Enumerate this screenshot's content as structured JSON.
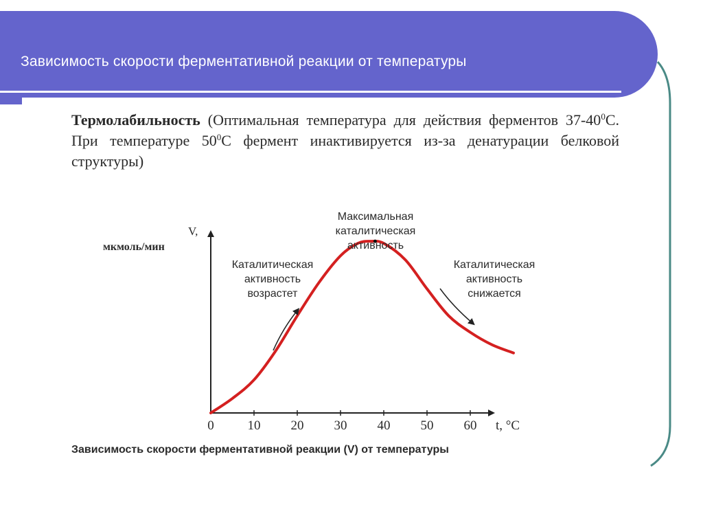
{
  "header": {
    "title": "Зависимость скорости  ферментативной реакции от температуры",
    "color": "#6464cc"
  },
  "description": {
    "bold_term": "Термолабильность",
    "text_1": " (Оптимальная температура для действия ферментов 37-40",
    "sup_1": "0",
    "text_2": "С. При температуре 50",
    "sup_2": "0",
    "text_3": "С фермент инактивируется из-за денатурации белковой структуры)"
  },
  "chart_data": {
    "type": "line",
    "ylabel_line1": "V,",
    "ylabel_line2": "мкмоль/мин",
    "xlabel": "t, °C",
    "x_ticks": [
      "0",
      "10",
      "20",
      "30",
      "40",
      "50",
      "60"
    ],
    "xlim": [
      0,
      70
    ],
    "ylim": [
      0,
      1
    ],
    "series": [
      {
        "color": "#d42020",
        "x": [
          0,
          5,
          10,
          15,
          20,
          25,
          30,
          34,
          37,
          40,
          45,
          50,
          55,
          60,
          65,
          70
        ],
        "y": [
          0,
          0.07,
          0.16,
          0.3,
          0.47,
          0.63,
          0.76,
          0.82,
          0.83,
          0.82,
          0.74,
          0.6,
          0.47,
          0.39,
          0.33,
          0.29
        ]
      }
    ],
    "peak": {
      "x": 38,
      "y": 0.83
    },
    "annotations": {
      "max": [
        "Максимальная",
        "каталитическая",
        "активность"
      ],
      "rise": [
        "Каталитическая",
        "активность",
        "возрастет"
      ],
      "fall": [
        "Каталитическая",
        "активность",
        "снижается"
      ]
    },
    "caption": "Зависимость скорости ферментативной реакции (V) от температуры"
  }
}
